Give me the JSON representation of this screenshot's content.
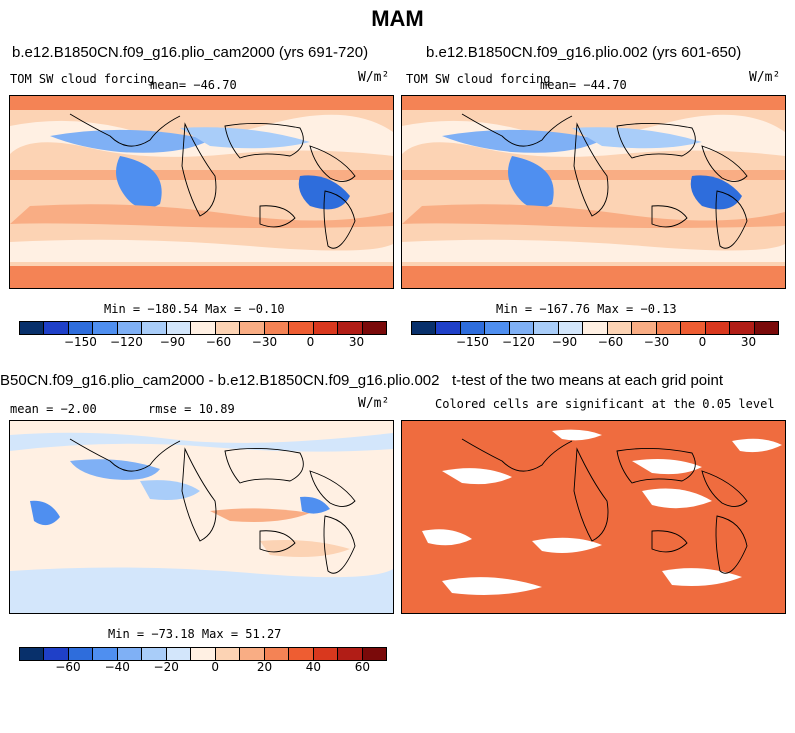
{
  "title": "MAM",
  "palette": [
    "#08306b",
    "#1f40c8",
    "#2e6ddc",
    "#4f8ff0",
    "#7fb0f5",
    "#a9cdf9",
    "#d3e6fb",
    "#fff0e3",
    "#fcd3b4",
    "#f9ad84",
    "#f48355",
    "#ee5d32",
    "#d9381e",
    "#b11d16",
    "#7a0a0a"
  ],
  "colors": {
    "map_fill": "#ef6c3f",
    "coast": "#000000"
  },
  "panels": {
    "top_left": {
      "title": "b.e12.B1850CN.f09_g16.plio_cam2000 (yrs 691-720)",
      "variable": "TOM SW cloud forcing",
      "mean": "mean= −46.70",
      "units": "W/m²",
      "minmax": "Min = −180.54  Max =  −0.10",
      "colorbar_ticks": [
        "−150",
        "−120",
        "−90",
        "−60",
        "−30",
        "0",
        "30"
      ]
    },
    "top_right": {
      "title": "b.e12.B1850CN.f09_g16.plio.002 (yrs 601-650)",
      "variable": "TOM SW cloud forcing",
      "mean": "mean= −44.70",
      "units": "W/m²",
      "minmax": "Min = −167.76  Max =  −0.13",
      "colorbar_ticks": [
        "−150",
        "−120",
        "−90",
        "−60",
        "−30",
        "0",
        "30"
      ]
    },
    "bottom_left": {
      "title": "B50CN.f09_g16.plio_cam2000 - b.e12.B1850CN.f09_g16.plio.002",
      "mean": "mean =   −2.00",
      "rmse": "rmse =  10.89",
      "units": "W/m²",
      "minmax": "Min = −73.18  Max =  51.27",
      "colorbar_ticks": [
        "−60",
        "−40",
        "−20",
        "0",
        "20",
        "40",
        "60"
      ]
    },
    "bottom_right": {
      "title": "t-test of the two means at each grid point",
      "subtitle": "Colored cells are significant at the 0.05 level"
    }
  }
}
